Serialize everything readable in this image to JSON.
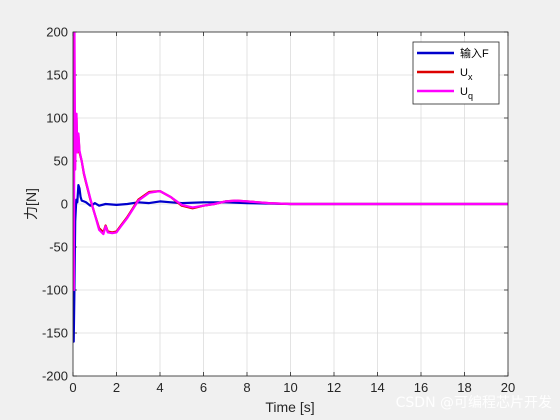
{
  "chart_data": {
    "type": "line",
    "xlabel": "Time [s]",
    "ylabel": "力[N]",
    "xlim": [
      0,
      20
    ],
    "ylim": [
      -200,
      200
    ],
    "x_ticks": [
      0,
      2,
      4,
      6,
      8,
      10,
      12,
      14,
      16,
      18,
      20
    ],
    "y_ticks": [
      -200,
      -150,
      -100,
      -50,
      0,
      50,
      100,
      150,
      200
    ],
    "grid": true,
    "legend_position": "top-right",
    "series": [
      {
        "name": "输入F",
        "sub": "",
        "color": "#0000cc",
        "x": [
          0,
          0.03,
          0.06,
          0.1,
          0.15,
          0.2,
          0.25,
          0.3,
          0.35,
          0.4,
          0.5,
          0.6,
          0.7,
          0.8,
          0.9,
          1.0,
          1.2,
          1.5,
          2.0,
          2.5,
          3.0,
          3.5,
          4.0,
          4.5,
          5.0,
          6.0,
          7.0,
          8.0,
          10.0,
          12.0,
          15.0,
          20.0
        ],
        "y": [
          0,
          -160,
          -110,
          -20,
          5,
          2,
          22,
          18,
          8,
          4,
          3,
          2,
          0,
          -2,
          -1,
          1,
          -2,
          0,
          -1,
          0,
          2,
          1,
          3,
          2,
          1,
          2,
          2,
          1,
          0,
          0,
          0,
          0
        ]
      },
      {
        "name": "U",
        "sub": "x",
        "color": "#dd0000",
        "x": [
          0,
          0.05,
          0.08,
          0.12,
          0.16,
          0.2,
          0.25,
          0.3,
          0.35,
          0.4,
          0.5,
          0.6,
          0.8,
          1.0,
          1.2,
          1.4,
          1.5,
          1.6,
          1.8,
          2.0,
          2.2,
          2.5,
          3.0,
          3.5,
          4.0,
          4.5,
          5.0,
          5.5,
          6.0,
          6.5,
          7.0,
          7.5,
          8.0,
          9.0,
          10.0,
          12.0,
          15.0,
          20.0
        ],
        "y": [
          0,
          195,
          40,
          85,
          100,
          60,
          80,
          60,
          55,
          50,
          35,
          25,
          5,
          -12,
          -28,
          -33,
          -25,
          -32,
          -33,
          -32,
          -25,
          -15,
          5,
          14,
          15,
          8,
          -2,
          -5,
          -2,
          0,
          3,
          4,
          3,
          1,
          0,
          0,
          0,
          0
        ]
      },
      {
        "name": "U",
        "sub": "q",
        "color": "#ff00ff",
        "x": [
          0,
          0.04,
          0.07,
          0.1,
          0.13,
          0.16,
          0.2,
          0.25,
          0.3,
          0.35,
          0.4,
          0.5,
          0.6,
          0.8,
          1.0,
          1.2,
          1.4,
          1.5,
          1.6,
          1.8,
          2.0,
          2.2,
          2.5,
          3.0,
          3.5,
          4.0,
          4.5,
          5.0,
          5.5,
          6.0,
          6.5,
          7.0,
          7.5,
          8.0,
          9.0,
          10.0,
          12.0,
          15.0,
          20.0
        ],
        "y": [
          0,
          -100,
          200,
          40,
          90,
          105,
          60,
          82,
          62,
          56,
          50,
          36,
          26,
          6,
          -12,
          -30,
          -35,
          -26,
          -33,
          -34,
          -33,
          -26,
          -16,
          4,
          13,
          15,
          8,
          -1,
          -4,
          -2,
          0,
          3,
          4,
          3,
          1,
          0,
          0,
          0,
          0
        ]
      }
    ]
  },
  "watermark": "CSDN @可编程芯片开发"
}
